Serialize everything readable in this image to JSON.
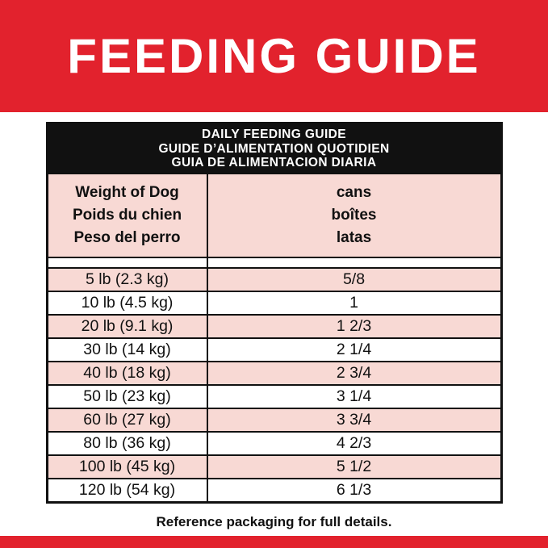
{
  "banner": {
    "title": "FEEDING GUIDE"
  },
  "table": {
    "title": [
      "DAILY FEEDING GUIDE",
      "GUIDE D’ALIMENTATION QUOTIDIEN",
      "GUIA DE ALIMENTACION DIARIA"
    ],
    "weight_header": [
      "Weight of Dog",
      "Poids du chien",
      "Peso del perro"
    ],
    "cans_header": [
      "cans",
      "boîtes",
      "latas"
    ],
    "rows": [
      {
        "weight": "5 lb (2.3 kg)",
        "cans": "5/8"
      },
      {
        "weight": "10 lb (4.5 kg)",
        "cans": "1"
      },
      {
        "weight": "20 lb (9.1 kg)",
        "cans": "1 2/3"
      },
      {
        "weight": "30 lb (14 kg)",
        "cans": "2 1/4"
      },
      {
        "weight": "40 lb (18 kg)",
        "cans": "2 3/4"
      },
      {
        "weight": "50 lb (23 kg)",
        "cans": "3 1/4"
      },
      {
        "weight": "60 lb (27 kg)",
        "cans": "3 3/4"
      },
      {
        "weight": "80 lb (36 kg)",
        "cans": "4 2/3"
      },
      {
        "weight": "100 lb (45 kg)",
        "cans": "5 1/2"
      },
      {
        "weight": "120 lb (54 kg)",
        "cans": "6 1/3"
      }
    ]
  },
  "footer": {
    "note": "Reference packaging for full details."
  },
  "colors": {
    "red": "#e2222d",
    "pink": "#f8d9d4",
    "ink": "#111111"
  }
}
